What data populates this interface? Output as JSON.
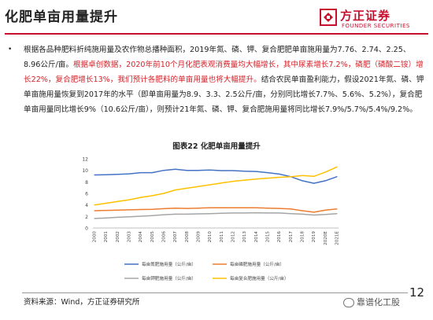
{
  "header": {
    "title": "化肥单亩用量提升",
    "logo_cn": "方正证券",
    "logo_en": "FOUNDER SECURITIES",
    "brand_color": "#c8102e"
  },
  "body": {
    "bullet": "•",
    "seg1": "根据各品种肥料折纯施用量及农作物总播种面积，2019年氮、磷、钾、复合肥肥单亩施用量为7.76、2.74、2.25、8.96公斤/亩。",
    "seg2": "根据卓创数据，2020年前10个月化肥表观消费量均大幅增长，其中尿素增长7.2%，磷肥（磷酸二铵）增长22%，复合肥增长13%，我们预计各肥料的单亩用量也将大幅提升。",
    "seg3": "结合农民单亩盈利能力，假设2021年氮、磷、钾单亩施用量恢复到2017年的水平（即单亩用量为8.9、3.3、2.5公斤/亩，分别同比增长7.7%、5.6%、5.2%），复合肥单亩用量同比增长9%（10.6公斤/亩），则预计21年氮、磷、钾、复合肥施用量将同比增长7.9%/5.7%/5.4%/9.2%。",
    "highlight_color": "#d3232a"
  },
  "chart_title": "图表22 化肥单亩用量提升",
  "chart_data": {
    "type": "line",
    "categories": [
      "2000",
      "2001",
      "2002",
      "2003",
      "2004",
      "2005",
      "2006",
      "2007",
      "2008",
      "2009",
      "2010",
      "2011",
      "2012",
      "2013",
      "2014",
      "2015",
      "2016",
      "2017",
      "2018",
      "2019",
      "2020E",
      "2021E"
    ],
    "y_ticks": [
      "0",
      "2",
      "4",
      "6",
      "8",
      "10",
      "12"
    ],
    "ylim": [
      0,
      12
    ],
    "grid": false,
    "legend_position": "bottom",
    "series": [
      {
        "name": "每亩氮肥施用量（公斤/亩）",
        "color": "#4472c4",
        "values": [
          9.2,
          9.25,
          9.3,
          9.4,
          9.6,
          9.6,
          10.0,
          10.2,
          10.0,
          10.0,
          10.05,
          9.95,
          9.95,
          9.85,
          9.8,
          9.6,
          9.35,
          8.9,
          8.2,
          7.76,
          8.2,
          8.9
        ]
      },
      {
        "name": "每亩磷肥施用量（公斤/亩）",
        "color": "#ed7d31",
        "values": [
          3.0,
          3.05,
          3.1,
          3.15,
          3.2,
          3.25,
          3.35,
          3.45,
          3.4,
          3.45,
          3.5,
          3.5,
          3.5,
          3.5,
          3.5,
          3.45,
          3.4,
          3.3,
          3.0,
          2.74,
          3.1,
          3.3
        ]
      },
      {
        "name": "每亩钾肥施用量（公斤/亩）",
        "color": "#a5a5a5",
        "values": [
          1.65,
          1.75,
          1.85,
          1.95,
          2.05,
          2.15,
          2.3,
          2.4,
          2.4,
          2.45,
          2.5,
          2.55,
          2.6,
          2.6,
          2.65,
          2.6,
          2.6,
          2.5,
          2.4,
          2.25,
          2.35,
          2.5
        ]
      },
      {
        "name": "每亩复合肥施用量（公斤/亩）",
        "color": "#ffc000",
        "values": [
          4.0,
          4.3,
          4.6,
          4.9,
          5.3,
          5.6,
          6.0,
          6.6,
          6.9,
          7.2,
          7.5,
          7.8,
          8.1,
          8.3,
          8.5,
          8.65,
          8.8,
          8.9,
          9.1,
          8.96,
          9.7,
          10.6
        ]
      }
    ]
  },
  "footer": {
    "source": "资料来源：Wind，方正证券研究所",
    "page_no": "12",
    "watermark": "靠谱化工股"
  }
}
